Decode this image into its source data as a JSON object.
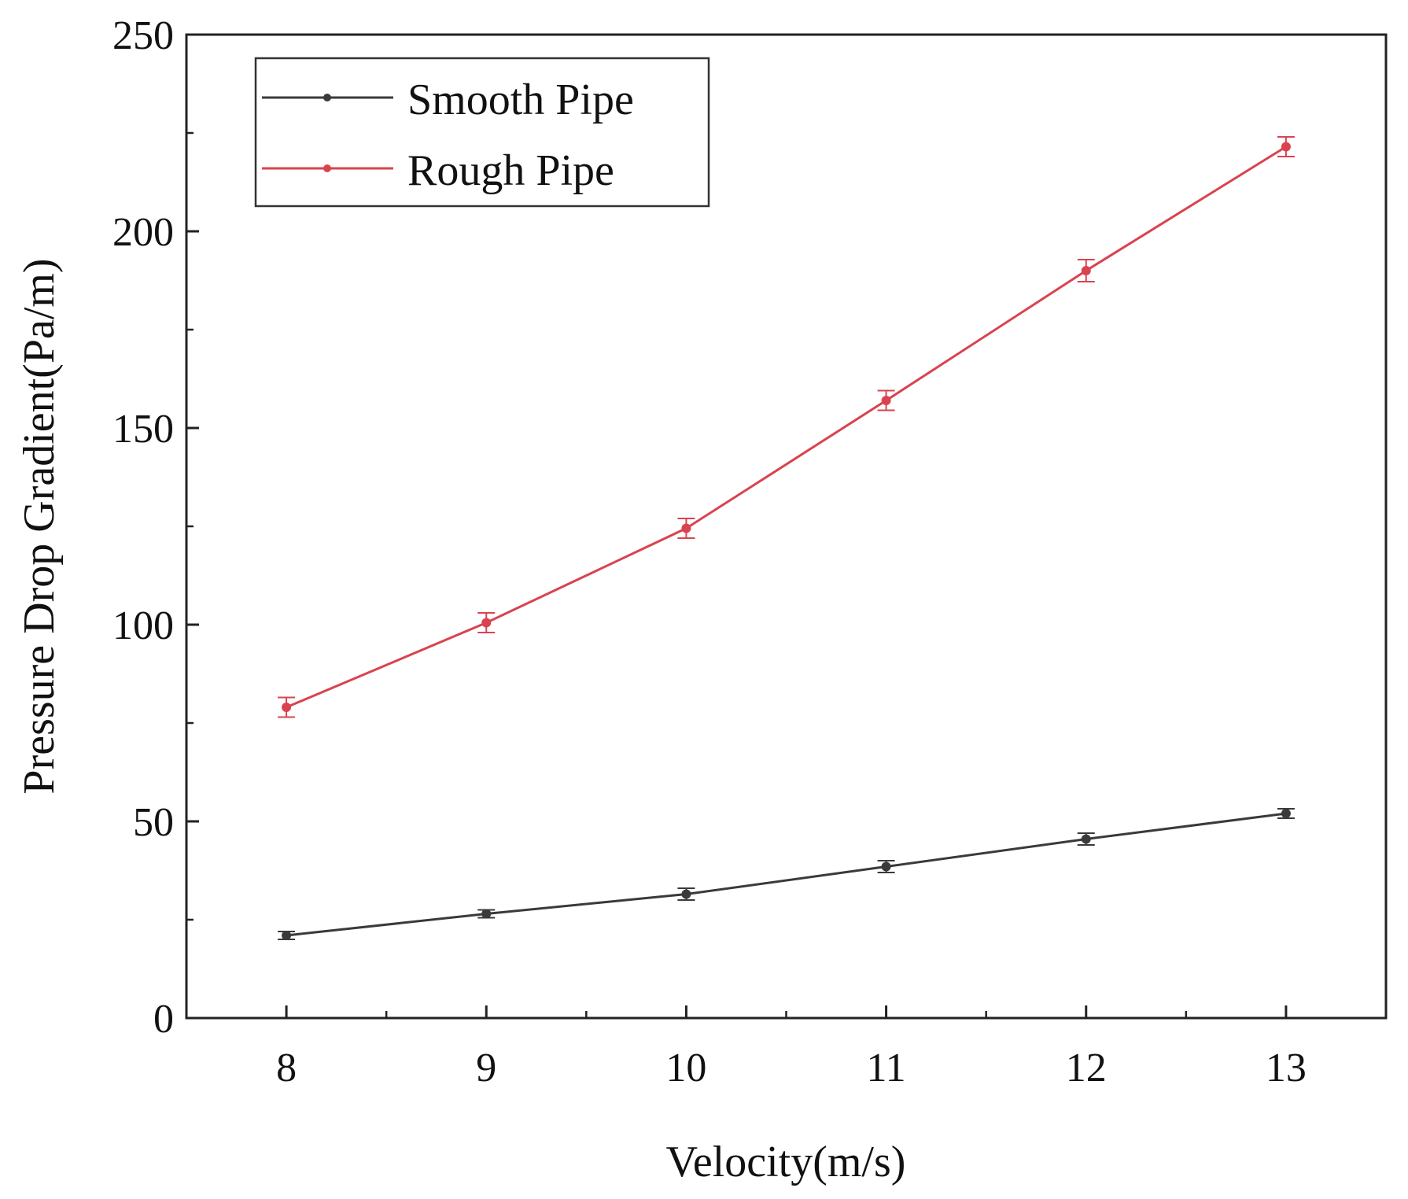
{
  "chart_data": {
    "type": "line",
    "title": "",
    "xlabel": "Velocity(m/s)",
    "ylabel": "Pressure Drop Gradient(Pa/m)",
    "x": [
      8,
      9,
      10,
      11,
      12,
      13
    ],
    "xlim": [
      7.5,
      13.5
    ],
    "ylim": [
      0,
      250
    ],
    "x_ticks": [
      "8",
      "9",
      "10",
      "11",
      "12",
      "13"
    ],
    "y_ticks": [
      "0",
      "50",
      "100",
      "150",
      "200",
      "250"
    ],
    "grid": false,
    "legend_position": "top-left",
    "series": [
      {
        "name": "Smooth Pipe",
        "color": "#3a3a3a",
        "values": [
          21,
          26.5,
          31.5,
          38.5,
          45.5,
          52
        ],
        "errors": [
          1,
          1,
          1.5,
          1.5,
          1.5,
          1.2
        ]
      },
      {
        "name": "Rough Pipe",
        "color": "#d9434e",
        "values": [
          79,
          100.5,
          124.5,
          157,
          190,
          221.5
        ],
        "errors": [
          2.5,
          2.5,
          2.5,
          2.5,
          2.8,
          2.5
        ]
      }
    ]
  }
}
